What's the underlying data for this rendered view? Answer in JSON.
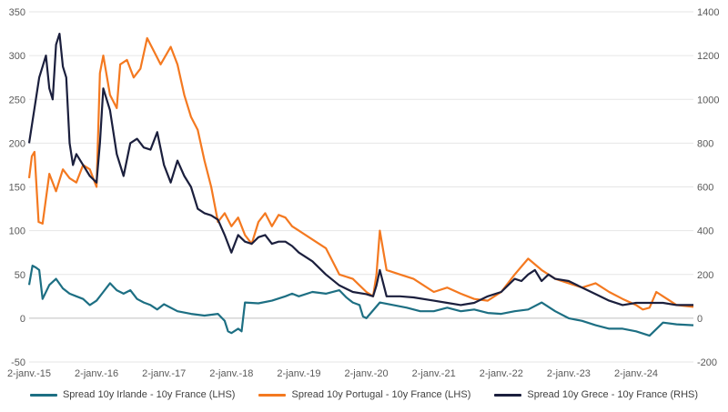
{
  "chart_data": {
    "type": "line",
    "x_labels": [
      "2-janv.-15",
      "2-janv.-16",
      "2-janv.-17",
      "2-janv.-18",
      "2-janv.-19",
      "2-janv.-20",
      "2-janv.-21",
      "2-janv.-22",
      "2-janv.-23",
      "2-janv.-24"
    ],
    "x_range": [
      2015.0,
      2024.85
    ],
    "y_left": {
      "min": -50,
      "max": 350,
      "ticks": [
        -50,
        0,
        50,
        100,
        150,
        200,
        250,
        300,
        350
      ]
    },
    "y_right": {
      "min": -200,
      "max": 1400,
      "ticks": [
        -200,
        0,
        200,
        400,
        600,
        800,
        1000,
        1200,
        1400
      ]
    },
    "grid": "horizontal",
    "legend_position": "bottom",
    "series": [
      {
        "name": "Spread 10y Irlande - 10y France (LHS)",
        "axis": "left",
        "color": "#1d6f83",
        "x": [
          2015.0,
          2015.05,
          2015.1,
          2015.15,
          2015.2,
          2015.3,
          2015.4,
          2015.5,
          2015.6,
          2015.7,
          2015.8,
          2015.9,
          2016.0,
          2016.1,
          2016.2,
          2016.3,
          2016.4,
          2016.5,
          2016.6,
          2016.7,
          2016.8,
          2016.9,
          2017.0,
          2017.2,
          2017.4,
          2017.6,
          2017.8,
          2017.9,
          2017.95,
          2018.0,
          2018.1,
          2018.15,
          2018.2,
          2018.4,
          2018.6,
          2018.8,
          2018.9,
          2019.0,
          2019.2,
          2019.4,
          2019.6,
          2019.7,
          2019.8,
          2019.9,
          2019.95,
          2020.0,
          2020.2,
          2020.4,
          2020.6,
          2020.8,
          2021.0,
          2021.2,
          2021.4,
          2021.6,
          2021.8,
          2022.0,
          2022.2,
          2022.4,
          2022.6,
          2022.8,
          2023.0,
          2023.2,
          2023.4,
          2023.6,
          2023.8,
          2024.0,
          2024.2,
          2024.4,
          2024.6,
          2024.85
        ],
        "values": [
          38,
          60,
          58,
          55,
          22,
          38,
          45,
          34,
          28,
          25,
          22,
          15,
          20,
          30,
          40,
          32,
          28,
          32,
          22,
          18,
          15,
          10,
          16,
          8,
          5,
          3,
          5,
          -3,
          -15,
          -17,
          -12,
          -15,
          18,
          17,
          20,
          25,
          28,
          25,
          30,
          28,
          32,
          24,
          18,
          15,
          2,
          0,
          18,
          15,
          12,
          8,
          8,
          12,
          8,
          10,
          6,
          5,
          8,
          10,
          18,
          8,
          0,
          -3,
          -8,
          -12,
          -12,
          -15,
          -20,
          -5,
          -7,
          -8
        ]
      },
      {
        "name": "Spread 10y Portugal - 10y France (LHS)",
        "axis": "left",
        "color": "#f47920",
        "x": [
          2015.0,
          2015.04,
          2015.08,
          2015.14,
          2015.2,
          2015.3,
          2015.4,
          2015.5,
          2015.6,
          2015.7,
          2015.8,
          2015.9,
          2016.0,
          2016.05,
          2016.1,
          2016.2,
          2016.3,
          2016.35,
          2016.45,
          2016.55,
          2016.65,
          2016.75,
          2016.85,
          2016.95,
          2017.1,
          2017.2,
          2017.3,
          2017.4,
          2017.5,
          2017.6,
          2017.7,
          2017.8,
          2017.9,
          2018.0,
          2018.1,
          2018.2,
          2018.3,
          2018.4,
          2018.5,
          2018.6,
          2018.7,
          2018.8,
          2018.9,
          2019.0,
          2019.2,
          2019.4,
          2019.6,
          2019.8,
          2020.0,
          2020.1,
          2020.15,
          2020.2,
          2020.3,
          2020.5,
          2020.7,
          2021.0,
          2021.2,
          2021.4,
          2021.6,
          2021.8,
          2022.0,
          2022.2,
          2022.4,
          2022.6,
          2022.8,
          2023.0,
          2023.2,
          2023.4,
          2023.6,
          2023.8,
          2024.0,
          2024.1,
          2024.2,
          2024.3,
          2024.4,
          2024.6,
          2024.85
        ],
        "values": [
          160,
          185,
          190,
          110,
          108,
          165,
          145,
          170,
          160,
          155,
          175,
          170,
          150,
          280,
          300,
          255,
          240,
          290,
          295,
          275,
          285,
          320,
          305,
          290,
          310,
          290,
          255,
          230,
          215,
          180,
          150,
          110,
          120,
          105,
          115,
          95,
          85,
          110,
          120,
          105,
          118,
          115,
          105,
          100,
          90,
          80,
          50,
          45,
          30,
          25,
          50,
          100,
          55,
          50,
          45,
          30,
          35,
          28,
          22,
          20,
          30,
          50,
          68,
          55,
          45,
          40,
          35,
          40,
          30,
          22,
          15,
          10,
          12,
          30,
          25,
          15,
          13
        ]
      },
      {
        "name": "Spread 10y Grece - 10y France (RHS)",
        "axis": "right",
        "color": "#1b1f3d",
        "x": [
          2015.0,
          2015.05,
          2015.1,
          2015.15,
          2015.2,
          2015.25,
          2015.3,
          2015.35,
          2015.4,
          2015.45,
          2015.5,
          2015.55,
          2015.6,
          2015.65,
          2015.7,
          2015.8,
          2015.9,
          2016.0,
          2016.05,
          2016.1,
          2016.2,
          2016.3,
          2016.4,
          2016.5,
          2016.6,
          2016.7,
          2016.8,
          2016.9,
          2017.0,
          2017.1,
          2017.2,
          2017.3,
          2017.4,
          2017.5,
          2017.6,
          2017.7,
          2017.8,
          2017.9,
          2018.0,
          2018.1,
          2018.2,
          2018.3,
          2018.4,
          2018.5,
          2018.6,
          2018.7,
          2018.8,
          2018.9,
          2019.0,
          2019.2,
          2019.4,
          2019.6,
          2019.8,
          2020.0,
          2020.1,
          2020.15,
          2020.2,
          2020.3,
          2020.5,
          2020.7,
          2021.0,
          2021.2,
          2021.4,
          2021.6,
          2021.8,
          2022.0,
          2022.2,
          2022.3,
          2022.4,
          2022.5,
          2022.6,
          2022.7,
          2022.8,
          2023.0,
          2023.2,
          2023.4,
          2023.6,
          2023.8,
          2024.0,
          2024.2,
          2024.4,
          2024.6,
          2024.85
        ],
        "values": [
          800,
          900,
          1000,
          1100,
          1150,
          1200,
          1050,
          1000,
          1250,
          1300,
          1150,
          1100,
          800,
          700,
          750,
          700,
          650,
          620,
          800,
          1050,
          950,
          750,
          650,
          800,
          820,
          780,
          770,
          850,
          700,
          620,
          720,
          650,
          600,
          500,
          480,
          470,
          450,
          380,
          300,
          380,
          350,
          340,
          370,
          380,
          340,
          350,
          350,
          330,
          300,
          260,
          200,
          150,
          120,
          110,
          100,
          150,
          220,
          100,
          100,
          95,
          80,
          70,
          60,
          70,
          100,
          120,
          180,
          170,
          200,
          220,
          170,
          200,
          180,
          170,
          140,
          110,
          80,
          60,
          70,
          70,
          70,
          60,
          60
        ]
      }
    ]
  }
}
